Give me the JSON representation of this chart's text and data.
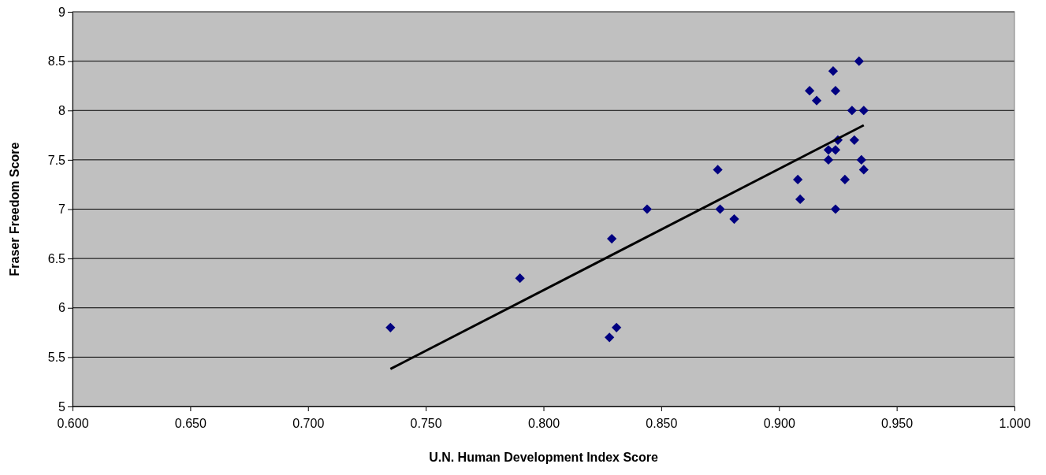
{
  "chart_data": {
    "type": "scatter",
    "xlabel": "U.N. Human Development Index Score",
    "ylabel": "Fraser Freedom Score",
    "xlim": [
      0.6,
      1.0
    ],
    "xticks": [
      {
        "value": 0.6,
        "label": "0.600"
      },
      {
        "value": 0.65,
        "label": "0.650"
      },
      {
        "value": 0.7,
        "label": "0.700"
      },
      {
        "value": 0.75,
        "label": "0.750"
      },
      {
        "value": 0.8,
        "label": "0.800"
      },
      {
        "value": 0.85,
        "label": "0.850"
      },
      {
        "value": 0.9,
        "label": "0.900"
      },
      {
        "value": 0.95,
        "label": "0.950"
      },
      {
        "value": 1.0,
        "label": "1.000"
      }
    ],
    "ylim": [
      5,
      9
    ],
    "yticks": [
      5,
      5.5,
      6,
      6.5,
      7,
      7.5,
      8,
      8.5,
      9
    ],
    "grid": "y",
    "series": [
      {
        "marker": "diamond",
        "color": "#000080",
        "x": [
          0.735,
          0.79,
          0.829,
          0.828,
          0.831,
          0.844,
          0.874,
          0.875,
          0.881,
          0.908,
          0.909,
          0.913,
          0.916,
          0.921,
          0.921,
          0.923,
          0.924,
          0.924,
          0.925,
          0.924,
          0.928,
          0.931,
          0.932,
          0.934,
          0.936,
          0.935,
          0.936
        ],
        "values": [
          5.8,
          6.3,
          6.7,
          5.7,
          5.8,
          7.0,
          7.4,
          7.0,
          6.9,
          7.3,
          7.1,
          8.2,
          8.1,
          7.5,
          7.6,
          8.4,
          8.2,
          7.6,
          7.7,
          7.0,
          7.3,
          8.0,
          7.7,
          8.5,
          8.0,
          7.5,
          7.4
        ]
      },
      {
        "type": "line",
        "color": "#000000",
        "x": [
          0.735,
          0.936
        ],
        "values": [
          5.38,
          7.85
        ]
      }
    ]
  }
}
